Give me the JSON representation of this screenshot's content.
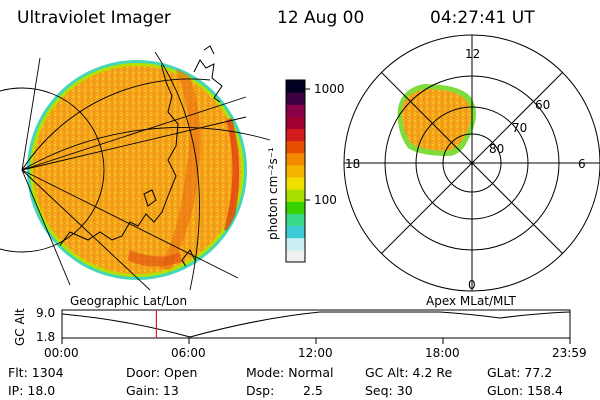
{
  "header": {
    "instrument": "Ultraviolet Imager",
    "date": "12 Aug 00",
    "time": "04:27:41 UT"
  },
  "colorbar": {
    "unit": "photon cm⁻²s⁻¹",
    "tick_1000": "1000",
    "tick_100": "100",
    "colors": [
      "#f0f0f0",
      "#c9eef3",
      "#3ecbd8",
      "#39d98a",
      "#38d200",
      "#a8e000",
      "#f0e000",
      "#f7b400",
      "#f58a00",
      "#e85000",
      "#d21b1b",
      "#a00030",
      "#8a0046",
      "#3c0040",
      "#000020"
    ]
  },
  "polar": {
    "mlt_labels": {
      "top": "12",
      "left": "18",
      "right": "6",
      "bottom": "0"
    },
    "lat_labels": {
      "l60": "60",
      "l70": "70",
      "l80": "80"
    }
  },
  "labels": {
    "left_projection": "Geographic Lat/Lon",
    "right_projection": "Apex MLat/MLT"
  },
  "timeline": {
    "y_label": "GC Alt",
    "y_max": "9.0",
    "y_min": "1.8",
    "ticks": [
      "00:00",
      "06:00",
      "12:00",
      "18:00",
      "23:59"
    ],
    "current_time_hours": 4.46
  },
  "footer": {
    "flt": "Flt: 1304",
    "ip": "IP: 18.0",
    "door": "Door: Open",
    "gain": "Gain: 13",
    "mode": "Mode: Normal",
    "dsp_label": "Dsp:",
    "dsp_value": "2.5",
    "gc_alt": "GC Alt: 4.2 Re",
    "seq": "Seq: 30",
    "glat": "GLat: 77.2",
    "glon": "GLon: 158.4"
  }
}
